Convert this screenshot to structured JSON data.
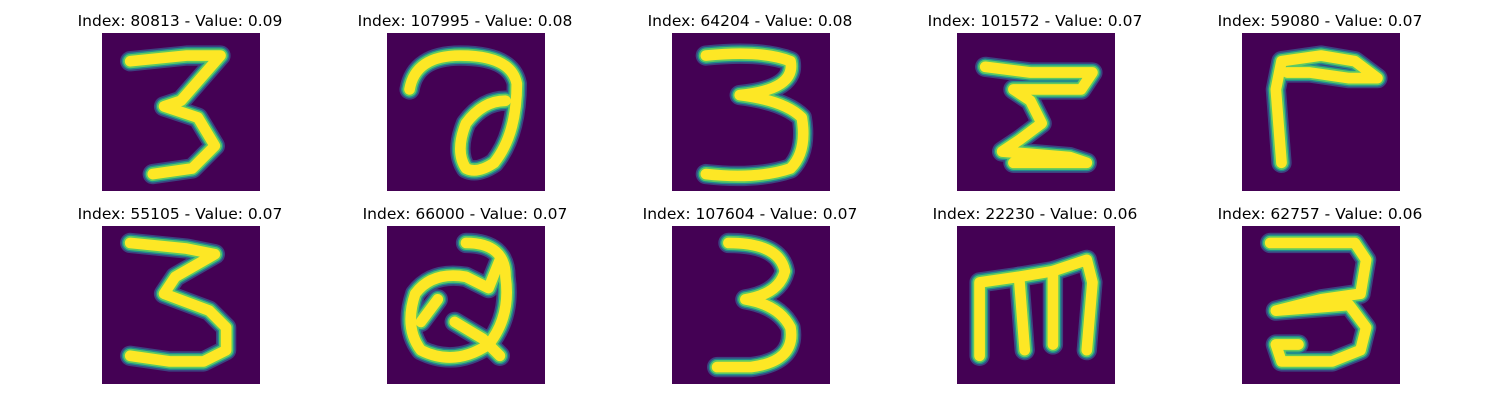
{
  "colormap": {
    "background": "#440154",
    "edge_low": "#3b528b",
    "edge_mid": "#21918c",
    "edge_high": "#5ec962",
    "stroke": "#fde725"
  },
  "panels": [
    {
      "title": "Index: 80813 - Value: 0.09",
      "content": "handwritten digit 3"
    },
    {
      "title": "Index: 107995 - Value: 0.08",
      "content": "handwritten curled stroke resembling a"
    },
    {
      "title": "Index: 64204 - Value: 0.08",
      "content": "handwritten digit 3"
    },
    {
      "title": "Index: 101572 - Value: 0.07",
      "content": "handwritten Z-like stroke"
    },
    {
      "title": "Index: 59080 - Value: 0.07",
      "content": "handwritten r-like stroke"
    },
    {
      "title": "Index: 55105 - Value: 0.07",
      "content": "handwritten digit 3"
    },
    {
      "title": "Index: 66000 - Value: 0.07",
      "content": "handwritten Q-like loop"
    },
    {
      "title": "Index: 107604 - Value: 0.07",
      "content": "handwritten digit 3"
    },
    {
      "title": "Index: 22230 - Value: 0.06",
      "content": "handwritten m-like stroke"
    },
    {
      "title": "Index: 62757 - Value: 0.06",
      "content": "handwritten digit 3"
    }
  ]
}
